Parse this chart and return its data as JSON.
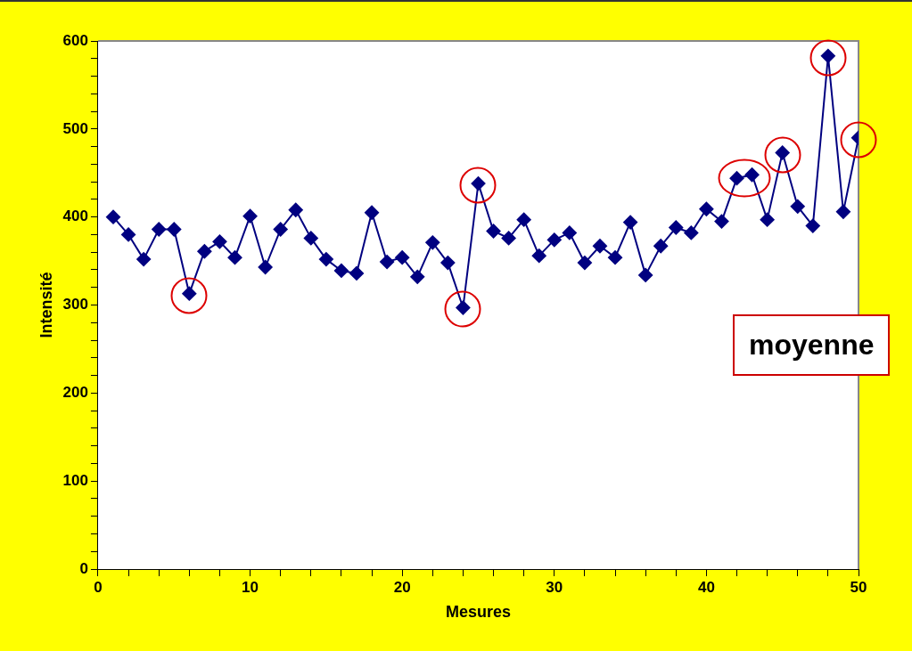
{
  "chart_data": {
    "type": "line",
    "xlabel": "Mesures",
    "ylabel": "Intensité",
    "x": [
      1,
      2,
      3,
      4,
      5,
      6,
      7,
      8,
      9,
      10,
      11,
      12,
      13,
      14,
      15,
      16,
      17,
      18,
      19,
      20,
      21,
      22,
      23,
      24,
      25,
      26,
      27,
      28,
      29,
      30,
      31,
      32,
      33,
      34,
      35,
      36,
      37,
      38,
      39,
      40,
      41,
      42,
      43,
      44,
      45,
      46,
      47,
      48,
      49,
      50
    ],
    "series": [
      {
        "color": "#000080",
        "values": [
          400,
          380,
          352,
          386,
          386,
          313,
          361,
          372,
          354,
          401,
          343,
          386,
          408,
          376,
          352,
          339,
          336,
          405,
          349,
          354,
          332,
          371,
          348,
          297,
          438,
          384,
          376,
          397,
          356,
          374,
          382,
          348,
          367,
          354,
          394,
          334,
          367,
          388,
          382,
          409,
          395,
          444,
          448,
          397,
          473,
          412,
          390,
          583,
          406,
          490
        ]
      }
    ],
    "xlim": [
      0,
      50
    ],
    "ylim": [
      0,
      600
    ],
    "xticks": [
      0,
      {
        "value": 2,
        "label": null
      },
      {
        "value": 4,
        "label": null
      },
      {
        "value": 6,
        "label": null
      },
      {
        "value": 8,
        "label": null
      },
      10,
      {
        "value": 12,
        "label": null
      },
      {
        "value": 14,
        "label": null
      },
      {
        "value": 16,
        "label": null
      },
      {
        "value": 18,
        "label": null
      },
      20,
      {
        "value": 22,
        "label": null
      },
      {
        "value": 24,
        "label": null
      },
      {
        "value": 26,
        "label": null
      },
      {
        "value": 28,
        "label": null
      },
      30,
      {
        "value": 32,
        "label": null
      },
      {
        "value": 34,
        "label": null
      },
      {
        "value": 36,
        "label": null
      },
      {
        "value": 38,
        "label": null
      },
      40,
      {
        "value": 42,
        "label": null
      },
      {
        "value": 44,
        "label": null
      },
      {
        "value": 46,
        "label": null
      },
      {
        "value": 48,
        "label": null
      },
      50
    ],
    "yticks": [
      0,
      {
        "value": 20,
        "label": null
      },
      {
        "value": 40,
        "label": null
      },
      {
        "value": 60,
        "label": null
      },
      {
        "value": 80,
        "label": null
      },
      100,
      {
        "value": 120,
        "label": null
      },
      {
        "value": 140,
        "label": null
      },
      {
        "value": 160,
        "label": null
      },
      {
        "value": 180,
        "label": null
      },
      200,
      {
        "value": 220,
        "label": null
      },
      {
        "value": 240,
        "label": null
      },
      {
        "value": 260,
        "label": null
      },
      {
        "value": 280,
        "label": null
      },
      300,
      {
        "value": 320,
        "label": null
      },
      {
        "value": 340,
        "label": null
      },
      {
        "value": 360,
        "label": null
      },
      {
        "value": 380,
        "label": null
      },
      400,
      {
        "value": 420,
        "label": null
      },
      {
        "value": 440,
        "label": null
      },
      {
        "value": 460,
        "label": null
      },
      {
        "value": 480,
        "label": null
      },
      500,
      {
        "value": 520,
        "label": null
      },
      {
        "value": 540,
        "label": null
      },
      {
        "value": 560,
        "label": null
      },
      {
        "value": 580,
        "label": null
      },
      600
    ],
    "grid": false,
    "legend": false,
    "marker": "diamond",
    "line_style": "solid",
    "annotations": [
      "moyenne"
    ]
  }
}
